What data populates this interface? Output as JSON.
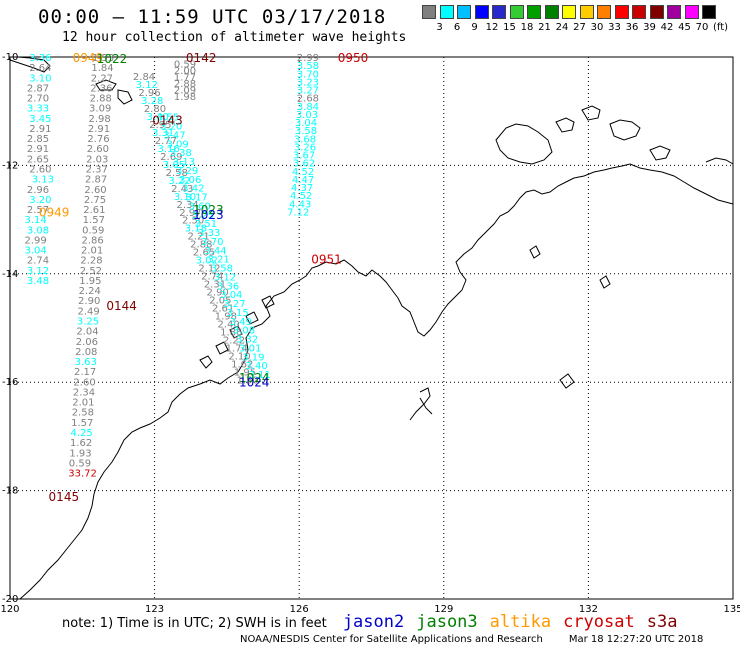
{
  "title": "00:00 – 11:59 UTC 03/17/2018",
  "subtitle": "12 hour collection of altimeter wave heights",
  "legend": {
    "unit": "(ft)",
    "items": [
      {
        "color": "#808080",
        "label": ""
      },
      {
        "color": "#00ffff",
        "label": "3"
      },
      {
        "color": "#00bfff",
        "label": "6"
      },
      {
        "color": "#0000ff",
        "label": "9"
      },
      {
        "color": "#2828cc",
        "label": "12"
      },
      {
        "color": "#33cc33",
        "label": "15"
      },
      {
        "color": "#00a000",
        "label": "18"
      },
      {
        "color": "#008000",
        "label": "21"
      },
      {
        "color": "#ffff00",
        "label": "24"
      },
      {
        "color": "#ffcc00",
        "label": "27"
      },
      {
        "color": "#ff8000",
        "label": "30"
      },
      {
        "color": "#ff0000",
        "label": "33"
      },
      {
        "color": "#cc0000",
        "label": "36"
      },
      {
        "color": "#800000",
        "label": "39"
      },
      {
        "color": "#a000a0",
        "label": "42"
      },
      {
        "color": "#ff00ff",
        "label": "45"
      },
      {
        "color": "#000000",
        "label": "70"
      }
    ]
  },
  "axes": {
    "lon_labels": [
      "120",
      "123",
      "126",
      "129",
      "132",
      "135"
    ],
    "lat_labels": [
      "-10",
      "-12",
      "-14",
      "-16",
      "-18",
      "-20"
    ]
  },
  "note": {
    "prefix": "note: 1) Time is in UTC; 2) SWH is in feet",
    "satellites": [
      {
        "name": "jason2",
        "color": "#0000cc"
      },
      {
        "name": "jason3",
        "color": "#008000"
      },
      {
        "name": "altika",
        "color": "#ff9900"
      },
      {
        "name": "cryosat",
        "color": "#cc0000"
      },
      {
        "name": "s3a",
        "color": "#800000"
      }
    ]
  },
  "credit": "NOAA/NESDIS Center for Satellite Applications and Research",
  "timestamp": "Mar 18 12:27:20 UTC 2018",
  "times": [
    {
      "text": "0949",
      "color": "#ff9900",
      "lon": 121.3,
      "lat": -10.0
    },
    {
      "text": "1022",
      "color": "#008000",
      "lon": 121.8,
      "lat": -10.02
    },
    {
      "text": "0142",
      "color": "#800000",
      "lon": 123.65,
      "lat": -10.0
    },
    {
      "text": "0950",
      "color": "#cc0000",
      "lon": 126.8,
      "lat": -10.0
    },
    {
      "text": "0143",
      "color": "#800000",
      "lon": 122.95,
      "lat": -11.15
    },
    {
      "text": "0949",
      "color": "#ff9900",
      "lon": 120.6,
      "lat": -12.85
    },
    {
      "text": "1023",
      "color": "#008000",
      "lon": 123.8,
      "lat": -12.8
    },
    {
      "text": "1023",
      "color": "#0000cc",
      "lon": 123.8,
      "lat": -12.9
    },
    {
      "text": "0951",
      "color": "#cc0000",
      "lon": 126.25,
      "lat": -13.72
    },
    {
      "text": "0144",
      "color": "#800000",
      "lon": 122.0,
      "lat": -14.58
    },
    {
      "text": "1024",
      "color": "#008000",
      "lon": 124.75,
      "lat": -15.9
    },
    {
      "text": "1024",
      "color": "#0000cc",
      "lon": 124.75,
      "lat": -15.99
    },
    {
      "text": "0145",
      "color": "#800000",
      "lon": 120.8,
      "lat": -18.1
    }
  ],
  "track_cryosat": {
    "lon_start": 120.4,
    "lat_start": -10.0,
    "lon_step": 0.0,
    "lat_step": 0.187,
    "values": [
      {
        "v": "3.36",
        "c": "#00ffff",
        "dx": 0.0
      },
      {
        "v": "2.64",
        "c": "#808080",
        "dx": 0.0
      },
      {
        "v": "3.10",
        "c": "#00ffff",
        "dx": 0.0
      },
      {
        "v": "2.87",
        "c": "#808080",
        "dx": -0.05
      },
      {
        "v": "2.70",
        "c": "#808080",
        "dx": -0.05
      },
      {
        "v": "3.33",
        "c": "#00ffff",
        "dx": -0.05
      },
      {
        "v": "3.45",
        "c": "#00ffff",
        "dx": 0.0
      },
      {
        "v": "2.91",
        "c": "#808080",
        "dx": 0.0
      },
      {
        "v": "2.85",
        "c": "#808080",
        "dx": -0.05
      },
      {
        "v": "2.91",
        "c": "#808080",
        "dx": -0.05
      },
      {
        "v": "2.65",
        "c": "#808080",
        "dx": -0.05
      },
      {
        "v": "2.60",
        "c": "#808080",
        "dx": 0.0
      },
      {
        "v": "3.13",
        "c": "#00ffff",
        "dx": 0.05
      },
      {
        "v": "2.96",
        "c": "#808080",
        "dx": -0.05
      },
      {
        "v": "3.20",
        "c": "#00ffff",
        "dx": 0.0
      },
      {
        "v": "2.57",
        "c": "#808080",
        "dx": -0.05
      },
      {
        "v": "3.14",
        "c": "#00ffff",
        "dx": -0.1
      },
      {
        "v": "3.08",
        "c": "#00ffff",
        "dx": -0.05
      },
      {
        "v": "2.99",
        "c": "#808080",
        "dx": -0.1
      },
      {
        "v": "3.04",
        "c": "#00ffff",
        "dx": -0.1
      },
      {
        "v": "2.74",
        "c": "#808080",
        "dx": -0.05
      },
      {
        "v": "3.12",
        "c": "#00ffff",
        "dx": -0.05
      },
      {
        "v": "3.48",
        "c": "#00ffff",
        "dx": -0.05
      }
    ]
  },
  "track_s3a_left": {
    "lon_start": 121.7,
    "lat_start": -10.0,
    "lon_step": -0.012,
    "lat_step": 0.187,
    "values": [
      {
        "v": "1.53",
        "c": "#808080"
      },
      {
        "v": "1.84",
        "c": "#808080"
      },
      {
        "v": "2.27",
        "c": "#808080"
      },
      {
        "v": "2.36",
        "c": "#808080"
      },
      {
        "v": "2.88",
        "c": "#808080"
      },
      {
        "v": "3.09",
        "c": "#808080"
      },
      {
        "v": "2.98",
        "c": "#808080"
      },
      {
        "v": "2.91",
        "c": "#808080"
      },
      {
        "v": "2.76",
        "c": "#808080"
      },
      {
        "v": "2.60",
        "c": "#808080"
      },
      {
        "v": "2.03",
        "c": "#808080"
      },
      {
        "v": "2.37",
        "c": "#808080"
      },
      {
        "v": "2.87",
        "c": "#808080"
      },
      {
        "v": "2.60",
        "c": "#808080"
      },
      {
        "v": "2.75",
        "c": "#808080"
      },
      {
        "v": "2.61",
        "c": "#808080"
      },
      {
        "v": "1.57",
        "c": "#808080"
      },
      {
        "v": "0.59",
        "c": "#808080"
      },
      {
        "v": "2.86",
        "c": "#808080"
      },
      {
        "v": "2.01",
        "c": "#808080"
      },
      {
        "v": "2.28",
        "c": "#808080"
      },
      {
        "v": "2.52",
        "c": "#808080"
      },
      {
        "v": "1.95",
        "c": "#808080"
      },
      {
        "v": "2.24",
        "c": "#808080"
      },
      {
        "v": "2.90",
        "c": "#808080"
      },
      {
        "v": "2.49",
        "c": "#808080"
      },
      {
        "v": "3.25",
        "c": "#00ffff"
      },
      {
        "v": "2.04",
        "c": "#808080"
      },
      {
        "v": "2.06",
        "c": "#808080"
      },
      {
        "v": "2.08",
        "c": "#808080"
      },
      {
        "v": "3.63",
        "c": "#00ffff"
      },
      {
        "v": "2.17",
        "c": "#808080"
      },
      {
        "v": "2.60",
        "c": "#808080"
      },
      {
        "v": "2.34",
        "c": "#808080"
      },
      {
        "v": "2.01",
        "c": "#808080"
      },
      {
        "v": "2.58",
        "c": "#808080"
      },
      {
        "v": "1.57",
        "c": "#808080"
      },
      {
        "v": "4.25",
        "c": "#00ffff"
      },
      {
        "v": "1.62",
        "c": "#808080"
      },
      {
        "v": "1.93",
        "c": "#808080"
      },
      {
        "v": "0.59",
        "c": "#808080"
      },
      {
        "v": "33.72",
        "c": "#cc0000"
      }
    ]
  },
  "track_mid": {
    "lon_start": 123.4,
    "lat_start": -10.12,
    "lon_step": 0.0,
    "lat_step": 0.12,
    "values": [
      {
        "v": "0.59",
        "c": "#808080"
      },
      {
        "v": "2.00",
        "c": "#808080"
      },
      {
        "v": "1.77",
        "c": "#808080"
      },
      {
        "v": "2.88",
        "c": "#808080"
      },
      {
        "v": "2.09",
        "c": "#808080"
      },
      {
        "v": "1.98",
        "c": "#808080"
      }
    ]
  },
  "track_jason_diag": {
    "lon_start": 122.55,
    "lat_start": -10.35,
    "lon_end": 124.7,
    "lat_end": -15.95,
    "values": [
      {
        "v": "2.84",
        "c": "#808080"
      },
      {
        "v": "3.12",
        "c": "#00ffff"
      },
      {
        "v": "2.96",
        "c": "#808080"
      },
      {
        "v": "3.28",
        "c": "#00ffff"
      },
      {
        "v": "2.80",
        "c": "#808080"
      },
      {
        "v": "3.40",
        "c": "#00ffff"
      },
      {
        "v": "2.95",
        "c": "#808080"
      },
      {
        "v": "3.31",
        "c": "#00ffff"
      },
      {
        "v": "2.77",
        "c": "#808080"
      },
      {
        "v": "3.16",
        "c": "#00ffff"
      },
      {
        "v": "2.69",
        "c": "#808080"
      },
      {
        "v": "3.05",
        "c": "#00ffff"
      },
      {
        "v": "2.58",
        "c": "#808080"
      },
      {
        "v": "3.22",
        "c": "#00ffff"
      },
      {
        "v": "2.43",
        "c": "#808080"
      },
      {
        "v": "3.10",
        "c": "#00ffff"
      },
      {
        "v": "2.34",
        "c": "#808080"
      },
      {
        "v": "2.97",
        "c": "#808080"
      },
      {
        "v": "2.50",
        "c": "#808080"
      },
      {
        "v": "3.18",
        "c": "#00ffff"
      },
      {
        "v": "2.21",
        "c": "#808080"
      },
      {
        "v": "2.88",
        "c": "#808080"
      },
      {
        "v": "2.65",
        "c": "#808080"
      },
      {
        "v": "3.02",
        "c": "#00ffff"
      },
      {
        "v": "2.12",
        "c": "#808080"
      },
      {
        "v": "2.74",
        "c": "#808080"
      },
      {
        "v": "2.31",
        "c": "#808080"
      },
      {
        "v": "2.90",
        "c": "#808080"
      },
      {
        "v": "2.05",
        "c": "#808080"
      },
      {
        "v": "2.61",
        "c": "#808080"
      },
      {
        "v": "1.98",
        "c": "#808080"
      },
      {
        "v": "2.40",
        "c": "#808080"
      },
      {
        "v": "1.86",
        "c": "#808080"
      },
      {
        "v": "2.22",
        "c": "#808080"
      },
      {
        "v": "1.74",
        "c": "#808080"
      },
      {
        "v": "2.10",
        "c": "#808080"
      },
      {
        "v": "1.62",
        "c": "#808080"
      },
      {
        "v": "1.95",
        "c": "#808080"
      },
      {
        "v": "1.50",
        "c": "#808080"
      }
    ]
  },
  "track_jason_diag2": {
    "lon_start": 123.05,
    "lat_start": -11.1,
    "lon_end": 124.95,
    "lat_end": -15.85,
    "values": [
      {
        "v": "3.55",
        "c": "#00ffff"
      },
      {
        "v": "3.20",
        "c": "#00ffff"
      },
      {
        "v": "3.47",
        "c": "#00ffff"
      },
      {
        "v": "3.09",
        "c": "#00ffff"
      },
      {
        "v": "3.38",
        "c": "#00ffff"
      },
      {
        "v": "3.13",
        "c": "#00ffff"
      },
      {
        "v": "3.29",
        "c": "#00ffff"
      },
      {
        "v": "3.06",
        "c": "#00ffff"
      },
      {
        "v": "3.42",
        "c": "#00ffff"
      },
      {
        "v": "3.17",
        "c": "#00ffff"
      },
      {
        "v": "3.60",
        "c": "#00ffff"
      },
      {
        "v": "3.25",
        "c": "#00ffff"
      },
      {
        "v": "3.51",
        "c": "#00ffff"
      },
      {
        "v": "3.33",
        "c": "#00ffff"
      },
      {
        "v": "3.70",
        "c": "#00ffff"
      },
      {
        "v": "3.44",
        "c": "#00ffff"
      },
      {
        "v": "3.21",
        "c": "#00ffff"
      },
      {
        "v": "3.58",
        "c": "#00ffff"
      },
      {
        "v": "3.12",
        "c": "#00ffff"
      },
      {
        "v": "3.36",
        "c": "#00ffff"
      },
      {
        "v": "3.04",
        "c": "#00ffff"
      },
      {
        "v": "3.27",
        "c": "#00ffff"
      },
      {
        "v": "3.15",
        "c": "#00ffff"
      },
      {
        "v": "3.49",
        "c": "#00ffff"
      },
      {
        "v": "3.08",
        "c": "#00ffff"
      },
      {
        "v": "3.32",
        "c": "#00ffff"
      },
      {
        "v": "3.01",
        "c": "#00ffff"
      },
      {
        "v": "3.19",
        "c": "#00ffff"
      },
      {
        "v": "3.40",
        "c": "#00ffff"
      },
      {
        "v": "3.11",
        "c": "#00ffff"
      }
    ]
  },
  "track_right": {
    "lon_start": 125.95,
    "lat_start": -10.0,
    "lon_step": 0.0,
    "lat_step": 0.15,
    "values": [
      {
        "v": "2.99",
        "c": "#808080",
        "dx": 0.0
      },
      {
        "v": "3.58",
        "c": "#00ffff",
        "dx": 0.0
      },
      {
        "v": "3.70",
        "c": "#00ffff",
        "dx": 0.0
      },
      {
        "v": "3.23",
        "c": "#00ffff",
        "dx": 0.0
      },
      {
        "v": "3.27",
        "c": "#00ffff",
        "dx": 0.0
      },
      {
        "v": "2.68",
        "c": "#808080",
        "dx": 0.0
      },
      {
        "v": "3.84",
        "c": "#00ffff",
        "dx": 0.0
      },
      {
        "v": "3.03",
        "c": "#00ffff",
        "dx": -0.02
      },
      {
        "v": "3.04",
        "c": "#00ffff",
        "dx": -0.04
      },
      {
        "v": "3.58",
        "c": "#00ffff",
        "dx": -0.04
      },
      {
        "v": "3.68",
        "c": "#00ffff",
        "dx": -0.06
      },
      {
        "v": "3.26",
        "c": "#00ffff",
        "dx": -0.06
      },
      {
        "v": "3.67",
        "c": "#00ffff",
        "dx": -0.08
      },
      {
        "v": "3.62",
        "c": "#00ffff",
        "dx": -0.08
      },
      {
        "v": "4.52",
        "c": "#00ffff",
        "dx": -0.1
      },
      {
        "v": "4.47",
        "c": "#00ffff",
        "dx": -0.1
      },
      {
        "v": "4.37",
        "c": "#00ffff",
        "dx": -0.12
      },
      {
        "v": "4.52",
        "c": "#00ffff",
        "dx": -0.14
      },
      {
        "v": "4.43",
        "c": "#00ffff",
        "dx": -0.16
      },
      {
        "v": "7.12",
        "c": "#00ffff",
        "dx": -0.2
      }
    ]
  }
}
